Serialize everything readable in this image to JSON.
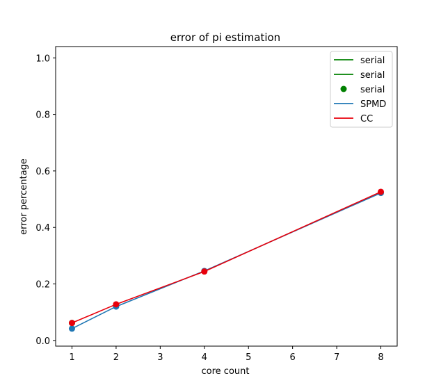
{
  "chart_data": {
    "type": "line",
    "title": "error of pi estimation",
    "xlabel": "core count",
    "ylabel": "error percentage",
    "xlim": [
      0.63,
      8.37
    ],
    "ylim": [
      -0.02,
      1.04
    ],
    "x_ticks": [
      1,
      2,
      3,
      4,
      5,
      6,
      7,
      8
    ],
    "y_ticks": [
      0.0,
      0.2,
      0.4,
      0.6,
      0.8,
      1.0
    ],
    "y_tick_labels": [
      "0.0",
      "0.2",
      "0.4",
      "0.6",
      "0.8",
      "1.0"
    ],
    "grid": false,
    "legend_position": "top-right",
    "series": [
      {
        "name": "serial",
        "style": "line",
        "color": "#008000",
        "x": [],
        "y": []
      },
      {
        "name": "serial",
        "style": "line",
        "color": "#008000",
        "x": [],
        "y": []
      },
      {
        "name": "serial",
        "style": "marker",
        "color": "#008000",
        "x": [
          1
        ],
        "y": [
          0.062
        ]
      },
      {
        "name": "SPMD",
        "style": "line+marker",
        "color": "#1f77b4",
        "x": [
          1,
          2,
          4,
          8
        ],
        "y": [
          0.042,
          0.12,
          0.246,
          0.522
        ]
      },
      {
        "name": "CC",
        "style": "line+marker",
        "color": "#e8000b",
        "x": [
          1,
          2,
          4,
          8
        ],
        "y": [
          0.062,
          0.128,
          0.244,
          0.526
        ]
      }
    ]
  }
}
